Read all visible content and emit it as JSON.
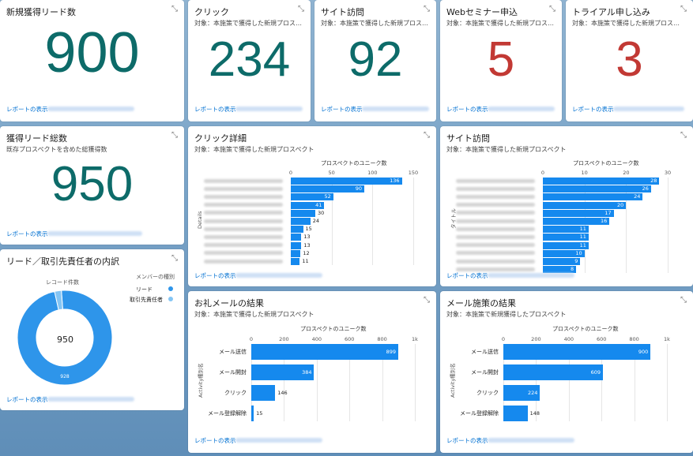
{
  "common": {
    "report_link": "レポートの表示",
    "expand_icon": "⤡",
    "subtitle_new": "対象：本施策で獲得した新規プロスペクト",
    "subtitle_new_trunc": "対象：本施策で獲得した新規プロス…"
  },
  "kpi_new_leads": {
    "title": "新規獲得リード数",
    "value": "900"
  },
  "kpi_click": {
    "title": "クリック",
    "value": "234"
  },
  "kpi_site": {
    "title": "サイト訪問",
    "value": "92"
  },
  "kpi_webinar": {
    "title": "Webセミナー申込",
    "value": "5"
  },
  "kpi_trial": {
    "title": "トライアル申し込み",
    "value": "3"
  },
  "kpi_total": {
    "title": "獲得リード総数",
    "subtitle": "既存プロスペクトを含めた総獲得数",
    "value": "950"
  },
  "donut": {
    "title": "リード／取引先責任者の内訳",
    "center_label": "レコード件数",
    "center_value": "950",
    "legend_title": "メンバーの種別",
    "legend": [
      {
        "label": "リード",
        "color": "#2e95ea"
      },
      {
        "label": "取引先責任者",
        "color": "#84c5f4"
      }
    ],
    "slice_label": "928",
    "chart_data": {
      "type": "pie",
      "categories": [
        "リード",
        "取引先責任者"
      ],
      "values": [
        928,
        22
      ]
    }
  },
  "click_detail": {
    "title": "クリック詳細",
    "axis_title": "プロスペクトのユニーク数",
    "y_axis_title": "Details",
    "chart_data": {
      "type": "bar",
      "xlim": [
        0,
        150
      ],
      "ticks": [
        "0",
        "50",
        "100",
        "150"
      ],
      "values": [
        136,
        90,
        52,
        41,
        30,
        24,
        15,
        13,
        13,
        12,
        11
      ]
    }
  },
  "site_detail": {
    "title": "サイト訪問",
    "subtitle": "対象：本施策で獲得した新規プロスペクト",
    "axis_title": "プロスペクトのユニーク数",
    "y_axis_title": "タイトル",
    "chart_data": {
      "type": "bar",
      "xlim": [
        0,
        30
      ],
      "ticks": [
        "0",
        "10",
        "20",
        "30"
      ],
      "values": [
        28,
        26,
        24,
        20,
        17,
        16,
        11,
        11,
        11,
        10,
        9,
        8
      ]
    }
  },
  "thanks_mail": {
    "title": "お礼メールの結果",
    "subtitle": "対象：本施策で獲得した新規プロスペクト",
    "axis_title": "プロスペクトのユニーク数",
    "y_axis_title": "Activity種別名",
    "chart_data": {
      "type": "bar",
      "xlim": [
        0,
        1000
      ],
      "ticks": [
        "0",
        "200",
        "400",
        "600",
        "800",
        "1k"
      ],
      "categories": [
        "メール送信",
        "メール開封",
        "クリック",
        "メール登録解除"
      ],
      "values": [
        899,
        384,
        146,
        15
      ]
    }
  },
  "mail_campaign": {
    "title": "メール施策の結果",
    "subtitle": "対象：本施策で新規獲得したプロスペクト",
    "axis_title": "プロスペクトのユニーク数",
    "y_axis_title": "Activity種別名",
    "chart_data": {
      "type": "bar",
      "xlim": [
        0,
        1000
      ],
      "ticks": [
        "0",
        "200",
        "400",
        "600",
        "800",
        "1k"
      ],
      "categories": [
        "メール送信",
        "メール開封",
        "クリック",
        "メール登録解除"
      ],
      "values": [
        900,
        609,
        224,
        148
      ]
    }
  }
}
